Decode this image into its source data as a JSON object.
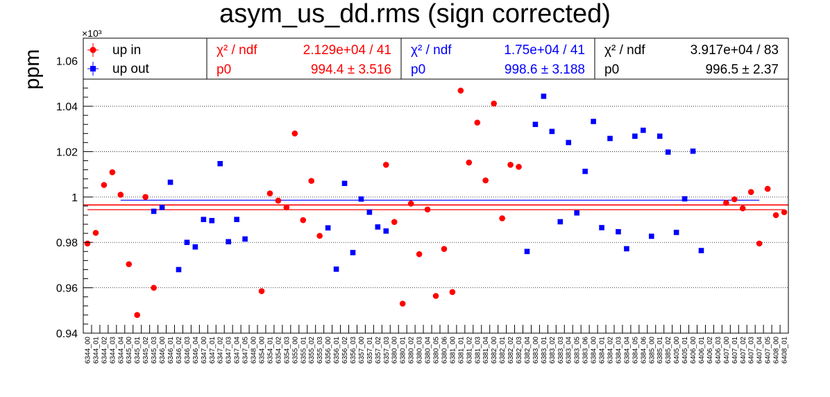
{
  "chart_data": {
    "type": "scatter",
    "title": "asym_us_dd.rms (sign corrected)",
    "ylabel": "ppm",
    "multiplier_label": "×10³",
    "ylim": [
      940,
      1070
    ],
    "yticks": [
      940,
      960,
      980,
      1000,
      1020,
      1040,
      1060
    ],
    "ytick_labels": [
      "0.94",
      "0.96",
      "0.98",
      "1",
      "1.02",
      "1.04",
      "1.06"
    ],
    "grid": true,
    "categories": [
      "6344_00",
      "6344_01",
      "6344_02",
      "6344_03",
      "6344_04",
      "6345_00",
      "6345_01",
      "6345_02",
      "6345_03",
      "6346_00",
      "6346_01",
      "6346_02",
      "6346_03",
      "6346_04",
      "6347_00",
      "6347_01",
      "6347_02",
      "6347_03",
      "6347_04",
      "6347_05",
      "6348_00",
      "6354_00",
      "6354_01",
      "6354_02",
      "6354_03",
      "6355_00",
      "6355_01",
      "6355_02",
      "6355_03",
      "6356_00",
      "6356_01",
      "6356_02",
      "6356_03",
      "6357_00",
      "6357_01",
      "6357_02",
      "6357_03",
      "6380_00",
      "6380_01",
      "6380_02",
      "6380_03",
      "6380_04",
      "6380_05",
      "6380_06",
      "6381_00",
      "6381_01",
      "6381_02",
      "6381_03",
      "6381_04",
      "6382_00",
      "6382_01",
      "6382_02",
      "6382_03",
      "6382_04",
      "6383_00",
      "6383_01",
      "6383_02",
      "6383_03",
      "6383_04",
      "6383_05",
      "6383_06",
      "6384_00",
      "6384_01",
      "6384_02",
      "6384_03",
      "6384_04",
      "6384_05",
      "6384_06",
      "6385_00",
      "6385_01",
      "6385_02",
      "6405_00",
      "6405_01",
      "6406_00",
      "6406_01",
      "6406_02",
      "6406_03",
      "6407_00",
      "6407_01",
      "6407_02",
      "6407_03",
      "6407_04",
      "6407_05",
      "6408_00",
      "6408_01"
    ],
    "series": [
      {
        "name": "up in",
        "color": "#ff0000",
        "marker": "circle",
        "points": [
          {
            "x": "6344_00",
            "y": 979.5
          },
          {
            "x": "6344_01",
            "y": 984.2
          },
          {
            "x": "6344_02",
            "y": 1005.3
          },
          {
            "x": "6344_03",
            "y": 1010.9
          },
          {
            "x": "6344_04",
            "y": 1001.0
          },
          {
            "x": "6345_00",
            "y": 970.4
          },
          {
            "x": "6345_01",
            "y": 948.0
          },
          {
            "x": "6345_02",
            "y": 1000.0
          },
          {
            "x": "6345_03",
            "y": 960.0
          },
          {
            "x": "6354_00",
            "y": 958.5
          },
          {
            "x": "6354_01",
            "y": 1001.6
          },
          {
            "x": "6354_02",
            "y": 998.4
          },
          {
            "x": "6354_03",
            "y": 995.4
          },
          {
            "x": "6355_00",
            "y": 1028.0
          },
          {
            "x": "6355_01",
            "y": 989.8
          },
          {
            "x": "6355_02",
            "y": 1007.1
          },
          {
            "x": "6355_03",
            "y": 982.9
          },
          {
            "x": "6357_03",
            "y": 1014.2
          },
          {
            "x": "6380_00",
            "y": 989.0
          },
          {
            "x": "6380_01",
            "y": 953.0
          },
          {
            "x": "6380_02",
            "y": 997.1
          },
          {
            "x": "6380_03",
            "y": 974.8
          },
          {
            "x": "6380_04",
            "y": 994.5
          },
          {
            "x": "6380_05",
            "y": 956.4
          },
          {
            "x": "6380_06",
            "y": 977.1
          },
          {
            "x": "6381_00",
            "y": 958.1
          },
          {
            "x": "6381_01",
            "y": 1046.9
          },
          {
            "x": "6381_02",
            "y": 1015.2
          },
          {
            "x": "6381_03",
            "y": 1032.8
          },
          {
            "x": "6381_04",
            "y": 1007.3
          },
          {
            "x": "6382_00",
            "y": 1041.2
          },
          {
            "x": "6382_01",
            "y": 990.6
          },
          {
            "x": "6382_02",
            "y": 1014.2
          },
          {
            "x": "6382_03",
            "y": 1013.3
          },
          {
            "x": "6407_00",
            "y": 997.4
          },
          {
            "x": "6407_01",
            "y": 999.0
          },
          {
            "x": "6407_02",
            "y": 995.0
          },
          {
            "x": "6407_03",
            "y": 1002.2
          },
          {
            "x": "6407_04",
            "y": 979.5
          },
          {
            "x": "6407_05",
            "y": 1003.6
          },
          {
            "x": "6408_00",
            "y": 992.0
          },
          {
            "x": "6408_01",
            "y": 993.3
          }
        ],
        "fit": {
          "p0": 994.4,
          "from": "6344_00",
          "to": "6408_01"
        }
      },
      {
        "name": "up out",
        "color": "#0000ff",
        "marker": "square",
        "points": [
          {
            "x": "6345_03",
            "y": 993.7
          },
          {
            "x": "6346_00",
            "y": 995.4
          },
          {
            "x": "6346_01",
            "y": 1006.5
          },
          {
            "x": "6346_02",
            "y": 968.0
          },
          {
            "x": "6346_03",
            "y": 980.0
          },
          {
            "x": "6346_04",
            "y": 978.0
          },
          {
            "x": "6347_00",
            "y": 990.1
          },
          {
            "x": "6347_01",
            "y": 989.6
          },
          {
            "x": "6347_02",
            "y": 1014.7
          },
          {
            "x": "6347_03",
            "y": 980.3
          },
          {
            "x": "6347_04",
            "y": 990.1
          },
          {
            "x": "6347_05",
            "y": 981.5
          },
          {
            "x": "6356_00",
            "y": 986.4
          },
          {
            "x": "6356_01",
            "y": 968.2
          },
          {
            "x": "6356_02",
            "y": 1006.0
          },
          {
            "x": "6356_03",
            "y": 975.5
          },
          {
            "x": "6357_00",
            "y": 999.1
          },
          {
            "x": "6357_01",
            "y": 993.3
          },
          {
            "x": "6357_02",
            "y": 986.8
          },
          {
            "x": "6357_03",
            "y": 985.0
          },
          {
            "x": "6382_04",
            "y": 976.0
          },
          {
            "x": "6383_00",
            "y": 1032.0
          },
          {
            "x": "6383_01",
            "y": 1044.4
          },
          {
            "x": "6383_02",
            "y": 1028.9
          },
          {
            "x": "6383_03",
            "y": 989.1
          },
          {
            "x": "6383_04",
            "y": 1024.0
          },
          {
            "x": "6383_05",
            "y": 993.0
          },
          {
            "x": "6383_06",
            "y": 1011.3
          },
          {
            "x": "6384_00",
            "y": 1033.3
          },
          {
            "x": "6384_01",
            "y": 986.5
          },
          {
            "x": "6384_02",
            "y": 1025.8
          },
          {
            "x": "6384_03",
            "y": 984.7
          },
          {
            "x": "6384_04",
            "y": 977.2
          },
          {
            "x": "6384_05",
            "y": 1026.8
          },
          {
            "x": "6384_06",
            "y": 1029.4
          },
          {
            "x": "6385_00",
            "y": 982.7
          },
          {
            "x": "6385_01",
            "y": 1026.8
          },
          {
            "x": "6385_02",
            "y": 1019.8
          },
          {
            "x": "6405_00",
            "y": 984.4
          },
          {
            "x": "6405_01",
            "y": 999.2
          },
          {
            "x": "6406_00",
            "y": 1020.2
          },
          {
            "x": "6406_01",
            "y": 976.4
          }
        ],
        "fit": {
          "p0": 998.6,
          "from": "6344_04",
          "to": "6407_04"
        }
      }
    ],
    "legend": {
      "placement": "top-left",
      "entries": [
        {
          "label": "up in",
          "color": "#ff0000",
          "marker": "circle"
        },
        {
          "label": "up out",
          "color": "#0000ff",
          "marker": "square"
        }
      ]
    },
    "stats_boxes": [
      {
        "color": "#ff0000",
        "chi2_label": "χ² / ndf",
        "chi2_value": "2.129e+04 / 41",
        "p0_label": "p0",
        "p0_value": "994.4 ± 3.516"
      },
      {
        "color": "#0000ff",
        "chi2_label": "χ² / ndf",
        "chi2_value": "1.75e+04 / 41",
        "p0_label": "p0",
        "p0_value": "998.6 ± 3.188"
      },
      {
        "color": "#000000",
        "chi2_label": "χ² / ndf",
        "chi2_value": "3.917e+04 / 83",
        "p0_label": "p0",
        "p0_value": "996.5 ±  2.37"
      }
    ],
    "overall_fit": {
      "p0": 996.5,
      "color": "#ff0000"
    }
  }
}
